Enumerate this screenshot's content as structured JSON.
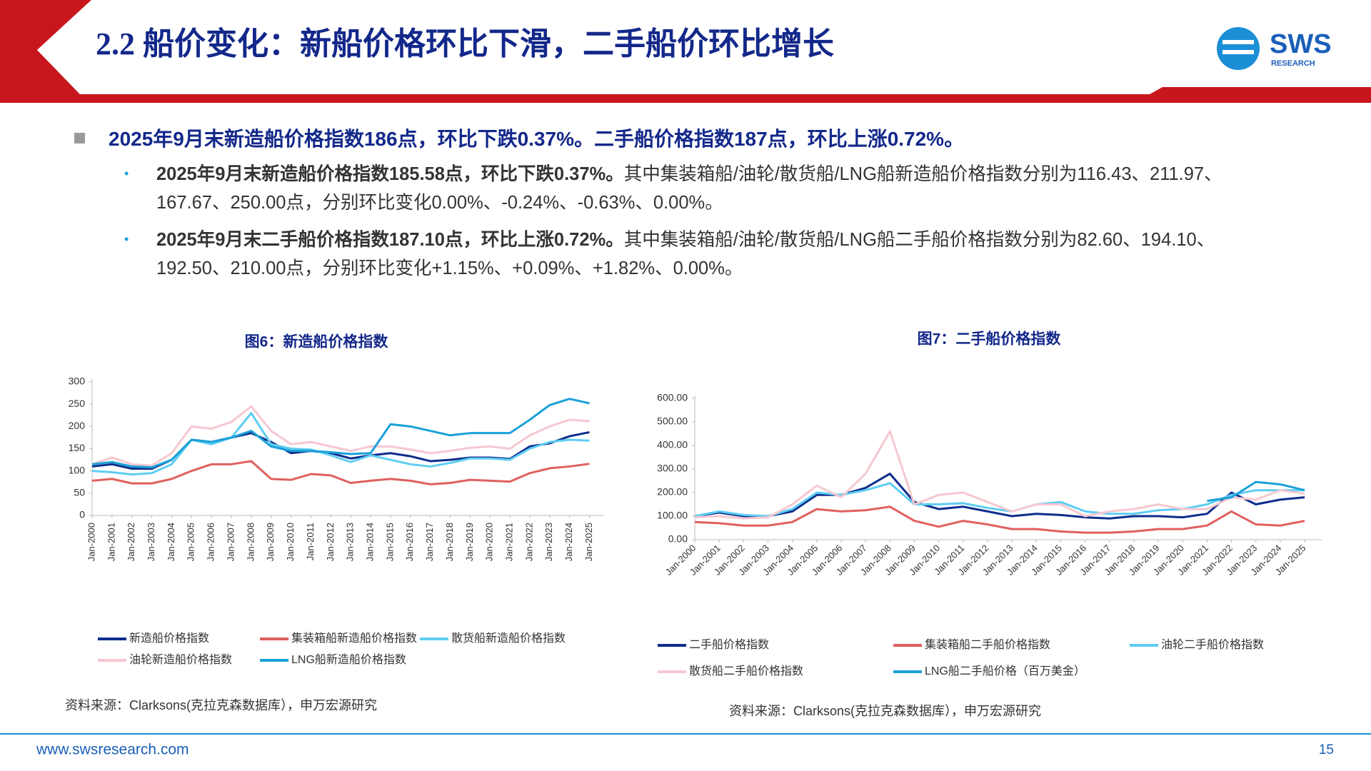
{
  "header": {
    "title": "2.2 船价变化：新船价格环比下滑，二手船价环比增长",
    "logo": "SWS",
    "logo_sub": "RESEARCH"
  },
  "bullets": {
    "main": "2025年9月末新造船价格指数186点，环比下跌0.37%。二手船价格指数187点，环比上涨0.72%。",
    "items": [
      {
        "bold": "2025年9月末新造船价格指数185.58点，环比下跌0.37%。",
        "text": "其中集装箱船/油轮/散货船/LNG船新造船价格指数分别为116.43、211.97、167.67、250.00点，分别环比变化0.00%、-0.24%、-0.63%、0.00%。"
      },
      {
        "bold": "2025年9月末二手船价格指数187.10点，环比上涨0.72%。",
        "text": "其中集装箱船/油轮/散货船/LNG船二手船价格指数分别为82.60、194.10、192.50、210.00点，分别环比变化+1.15%、+0.09%、+1.82%、0.00%。"
      }
    ]
  },
  "chart_data": [
    {
      "type": "line",
      "title": "图6：新造船价格指数",
      "source": "资料来源：Clarksons(克拉克森数据库），申万宏源研究",
      "categories": [
        "Jan-2000",
        "Jan-2001",
        "Jan-2002",
        "Jan-2003",
        "Jan-2004",
        "Jan-2005",
        "Jan-2006",
        "Jan-2007",
        "Jan-2008",
        "Jan-2009",
        "Jan-2010",
        "Jan-2011",
        "Jan-2012",
        "Jan-2013",
        "Jan-2014",
        "Jan-2015",
        "Jan-2016",
        "Jan-2017",
        "Jan-2018",
        "Jan-2019",
        "Jan-2020",
        "Jan-2021",
        "Jan-2022",
        "Jan-2023",
        "Jan-2024",
        "Jan-2025"
      ],
      "ylim": [
        0,
        300
      ],
      "yticks": [
        0,
        50,
        100,
        150,
        200,
        250,
        300
      ],
      "series": [
        {
          "name": "新造船价格指数",
          "color": "#0d2d8c",
          "values": [
            110,
            115,
            105,
            105,
            125,
            170,
            165,
            175,
            185,
            165,
            140,
            145,
            140,
            128,
            135,
            140,
            133,
            122,
            125,
            130,
            130,
            127,
            155,
            162,
            178,
            187
          ]
        },
        {
          "name": "集装箱船新造船价格指数",
          "color": "#e0605e",
          "values": [
            78,
            82,
            72,
            72,
            82,
            100,
            115,
            115,
            122,
            82,
            80,
            93,
            90,
            73,
            78,
            82,
            78,
            70,
            73,
            80,
            78,
            76,
            95,
            106,
            110,
            116
          ]
        },
        {
          "name": "散货船新造船价格指数",
          "color": "#5fcdf3",
          "values": [
            100,
            97,
            92,
            95,
            115,
            170,
            160,
            175,
            230,
            160,
            150,
            148,
            135,
            120,
            135,
            125,
            115,
            110,
            118,
            128,
            128,
            125,
            150,
            165,
            170,
            168
          ]
        },
        {
          "name": "油轮新造船价格指数",
          "color": "#f6c8d0",
          "values": [
            115,
            130,
            115,
            112,
            140,
            200,
            195,
            210,
            245,
            190,
            160,
            165,
            155,
            145,
            155,
            155,
            148,
            140,
            145,
            152,
            155,
            150,
            180,
            200,
            215,
            212
          ]
        },
        {
          "name": "LNG船新造船价格指数",
          "color": "#1ba1d8",
          "values": [
            115,
            120,
            110,
            108,
            125,
            170,
            165,
            175,
            190,
            155,
            145,
            145,
            142,
            138,
            140,
            205,
            200,
            190,
            180,
            185,
            185,
            185,
            215,
            248,
            262,
            252
          ]
        }
      ]
    },
    {
      "type": "line",
      "title": "图7：二手船价格指数",
      "source": "资料来源：Clarksons(克拉克森数据库），申万宏源研究",
      "categories": [
        "Jan-2000",
        "Jan-2001",
        "Jan-2002",
        "Jan-2003",
        "Jan-2004",
        "Jan-2005",
        "Jan-2006",
        "Jan-2007",
        "Jan-2008",
        "Jan-2009",
        "Jan-2010",
        "Jan-2011",
        "Jan-2012",
        "Jan-2013",
        "Jan-2014",
        "Jan-2015",
        "Jan-2016",
        "Jan-2017",
        "Jan-2018",
        "Jan-2019",
        "Jan-2020",
        "Jan-2021",
        "Jan-2022",
        "Jan-2023",
        "Jan-2024",
        "Jan-2025"
      ],
      "ylim": [
        0,
        600
      ],
      "yticks": [
        {
          "value": 0,
          "label": "0.00"
        },
        {
          "value": 100,
          "label": "100.00"
        },
        {
          "value": 200,
          "label": "200.00"
        },
        {
          "value": 300,
          "label": "300.00"
        },
        {
          "value": 400,
          "label": "400.00"
        },
        {
          "value": 500,
          "label": "500.00"
        },
        {
          "value": 600,
          "label": "600.00"
        }
      ],
      "series": [
        {
          "name": "二手船价格指数",
          "color": "#0d2d8c",
          "values": [
            100,
            115,
            100,
            100,
            120,
            190,
            190,
            220,
            280,
            160,
            130,
            140,
            120,
            100,
            110,
            105,
            95,
            90,
            100,
            100,
            95,
            110,
            200,
            150,
            170,
            180
          ]
        },
        {
          "name": "集装箱船二手船价格指数",
          "color": "#e0605e",
          "values": [
            75,
            70,
            60,
            60,
            75,
            130,
            120,
            125,
            140,
            80,
            55,
            80,
            65,
            45,
            45,
            35,
            30,
            30,
            35,
            45,
            45,
            60,
            120,
            65,
            60,
            80
          ]
        },
        {
          "name": "油轮二手船价格指数",
          "color": "#5fcdf3",
          "values": [
            100,
            120,
            105,
            100,
            130,
            200,
            190,
            210,
            240,
            150,
            150,
            155,
            135,
            120,
            150,
            160,
            120,
            110,
            110,
            125,
            130,
            150,
            190,
            210,
            210,
            210
          ]
        },
        {
          "name": "散货船二手船价格指数",
          "color": "#f6c8d0",
          "values": [
            95,
            100,
            90,
            95,
            150,
            230,
            180,
            280,
            460,
            150,
            190,
            200,
            160,
            120,
            150,
            150,
            100,
            120,
            130,
            150,
            130,
            130,
            180,
            170,
            210,
            195
          ]
        },
        {
          "name": "LNG船二手船价格（百万美金）",
          "color": "#1ba1d8",
          "values": [
            null,
            null,
            null,
            null,
            null,
            null,
            null,
            null,
            null,
            null,
            null,
            null,
            null,
            null,
            null,
            null,
            null,
            null,
            null,
            null,
            null,
            165,
            180,
            245,
            235,
            210
          ]
        }
      ]
    }
  ],
  "footer": {
    "url": "www.swsresearch.com",
    "page": "15"
  }
}
